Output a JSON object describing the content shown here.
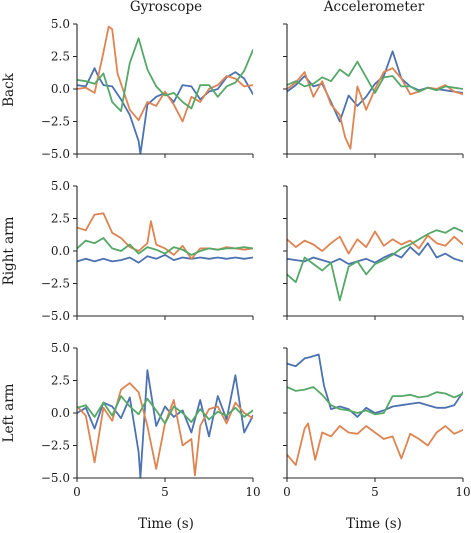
{
  "chart_data": {
    "type": "line",
    "layout": "grid-3x2",
    "column_titles": [
      "Gyroscope",
      "Accelerometer"
    ],
    "row_labels": [
      "Back",
      "Right arm",
      "Left arm"
    ],
    "xlabel": "Time (s)",
    "xlim": [
      0,
      10
    ],
    "ylim": [
      -5,
      5
    ],
    "xticks": [
      "0",
      "5",
      "10"
    ],
    "yticks": [
      "5.0",
      "2.5",
      "0.0",
      "−2.5",
      "−5.0"
    ],
    "xticks_values": [
      0,
      5,
      10
    ],
    "yticks_values": [
      5,
      2.5,
      0,
      -2.5,
      -5
    ],
    "series_colors": [
      "#4c72b0",
      "#dd8452",
      "#55a868"
    ],
    "grid": false,
    "panels": [
      {
        "row": "Back",
        "sensor": "Gyroscope",
        "series": [
          {
            "x": [
              0,
              0.5,
              1,
              1.2,
              1.5,
              2,
              2.5,
              3,
              3.5,
              3.6,
              4,
              4.5,
              5,
              5.5,
              6,
              6.5,
              7,
              7.5,
              8,
              8.5,
              9,
              9.5,
              10
            ],
            "y": [
              0.3,
              0.2,
              1.6,
              1.0,
              0.3,
              0.2,
              -0.8,
              -2.0,
              -4.0,
              -5.0,
              -1.2,
              -0.6,
              -0.3,
              -1.0,
              0.3,
              0.2,
              -0.8,
              -0.2,
              0.0,
              0.9,
              1.3,
              0.8,
              -0.4
            ]
          },
          {
            "x": [
              0,
              0.5,
              1,
              1.5,
              1.8,
              2,
              2.3,
              2.6,
              3,
              3.5,
              4,
              4.5,
              5,
              5.5,
              6,
              6.5,
              7,
              7.5,
              8,
              8.5,
              9,
              9.5,
              10
            ],
            "y": [
              0.0,
              0.1,
              -0.3,
              2.8,
              4.8,
              4.6,
              1.2,
              0.0,
              -1.6,
              -2.4,
              -1.0,
              -1.3,
              -0.2,
              -1.2,
              -2.5,
              -0.6,
              -1.0,
              0.0,
              0.3,
              1.0,
              0.8,
              0.2,
              0.3
            ]
          },
          {
            "x": [
              0,
              0.5,
              1,
              1.5,
              2,
              2.5,
              3,
              3.5,
              4,
              4.5,
              5,
              5.5,
              6,
              6.5,
              7,
              7.5,
              8,
              8.5,
              9,
              9.5,
              10
            ],
            "y": [
              0.7,
              0.6,
              0.4,
              1.2,
              -1.0,
              -1.7,
              2.0,
              3.9,
              1.5,
              0.2,
              -0.5,
              -0.3,
              -1.0,
              -1.5,
              0.3,
              0.3,
              -0.6,
              0.2,
              0.5,
              1.4,
              3.0
            ]
          }
        ]
      },
      {
        "row": "Back",
        "sensor": "Accelerometer",
        "series": [
          {
            "x": [
              0,
              0.5,
              1,
              1.5,
              2,
              2.5,
              3,
              3.5,
              4,
              4.5,
              5,
              5.5,
              6,
              6.5,
              7,
              7.5,
              8,
              8.5,
              9,
              9.5,
              10
            ],
            "y": [
              -0.2,
              0.3,
              1.0,
              0.2,
              0.4,
              -1.0,
              -2.5,
              -0.5,
              -1.3,
              -0.6,
              0.4,
              1.0,
              2.9,
              0.8,
              0.2,
              -0.1,
              0.1,
              0.0,
              -0.1,
              -0.2,
              -0.3
            ]
          },
          {
            "x": [
              0,
              0.5,
              1,
              1.5,
              2,
              2.5,
              3,
              3.3,
              3.6,
              4,
              4.5,
              5,
              5.5,
              6,
              6.5,
              7,
              7.5,
              8,
              8.5,
              9,
              9.5,
              10
            ],
            "y": [
              0.0,
              0.5,
              1.3,
              -0.6,
              0.6,
              -1.2,
              -2.0,
              -3.7,
              -4.6,
              0.2,
              -1.6,
              0.0,
              1.3,
              1.6,
              0.8,
              -0.4,
              -0.2,
              0.1,
              0.0,
              0.3,
              -0.2,
              -0.4
            ]
          },
          {
            "x": [
              0,
              0.5,
              1,
              1.5,
              2,
              2.5,
              3,
              3.5,
              4,
              4.5,
              5,
              5.5,
              6,
              6.5,
              7,
              7.5,
              8,
              8.5,
              9,
              9.5,
              10
            ],
            "y": [
              0.3,
              0.6,
              0.2,
              0.4,
              0.9,
              0.6,
              1.5,
              1.0,
              2.1,
              0.9,
              -0.3,
              0.9,
              1.0,
              0.2,
              0.2,
              -0.2,
              0.1,
              -0.1,
              0.2,
              0.1,
              0.0
            ]
          }
        ]
      },
      {
        "row": "Right arm",
        "sensor": "Gyroscope",
        "series": [
          {
            "x": [
              0,
              0.5,
              1,
              1.5,
              2,
              2.5,
              3,
              3.5,
              4,
              4.5,
              5,
              5.5,
              6,
              6.5,
              7,
              7.5,
              8,
              8.5,
              9,
              9.5,
              10
            ],
            "y": [
              -0.8,
              -0.6,
              -0.8,
              -0.6,
              -0.8,
              -0.7,
              -0.5,
              -0.9,
              -0.4,
              -0.6,
              -0.3,
              -0.7,
              -0.5,
              -0.6,
              -0.5,
              -0.6,
              -0.5,
              -0.6,
              -0.5,
              -0.6,
              -0.5
            ]
          },
          {
            "x": [
              0,
              0.5,
              1,
              1.5,
              2,
              2.5,
              3,
              3.5,
              4,
              4.2,
              4.5,
              5,
              5.5,
              6,
              6.5,
              7,
              7.5,
              8,
              8.5,
              9,
              9.5,
              10
            ],
            "y": [
              1.8,
              1.6,
              2.8,
              2.9,
              1.4,
              1.0,
              0.3,
              0.0,
              0.6,
              2.3,
              0.5,
              0.2,
              -0.3,
              0.4,
              -0.6,
              0.2,
              0.2,
              0.1,
              0.3,
              0.2,
              0.1,
              0.2
            ]
          },
          {
            "x": [
              0,
              0.5,
              1,
              1.5,
              2,
              2.5,
              3,
              3.5,
              4,
              4.5,
              5,
              5.5,
              6,
              6.5,
              7,
              7.5,
              8,
              8.5,
              9,
              9.5,
              10
            ],
            "y": [
              0.2,
              0.8,
              0.6,
              1.0,
              0.2,
              0.0,
              0.5,
              -0.2,
              0.3,
              0.1,
              -0.2,
              0.3,
              0.1,
              -0.3,
              0.0,
              0.2,
              0.1,
              0.2,
              0.2,
              0.3,
              0.2
            ]
          }
        ]
      },
      {
        "row": "Right arm",
        "sensor": "Accelerometer",
        "series": [
          {
            "x": [
              0,
              0.5,
              1,
              1.5,
              2,
              2.5,
              3,
              3.5,
              4,
              4.5,
              5,
              5.5,
              6,
              6.5,
              7,
              7.5,
              8,
              8.5,
              9,
              9.5,
              10
            ],
            "y": [
              -0.6,
              -0.7,
              -0.8,
              -0.5,
              -0.7,
              -0.9,
              -0.6,
              -1.0,
              -0.8,
              -0.6,
              -0.9,
              -0.5,
              -0.2,
              -0.5,
              0.3,
              -0.3,
              0.6,
              -0.5,
              -0.2,
              -0.6,
              -0.8
            ]
          },
          {
            "x": [
              0,
              0.5,
              1,
              1.5,
              2,
              2.5,
              3,
              3.5,
              4,
              4.5,
              5,
              5.5,
              6,
              6.5,
              7,
              7.5,
              8,
              8.5,
              9,
              9.5,
              10
            ],
            "y": [
              0.9,
              0.3,
              0.8,
              0.5,
              0.0,
              0.6,
              1.1,
              -0.2,
              0.9,
              0.3,
              1.5,
              0.4,
              0.9,
              0.5,
              0.8,
              0.2,
              1.2,
              0.6,
              0.4,
              1.1,
              0.5
            ]
          },
          {
            "x": [
              0,
              0.5,
              1,
              1.5,
              2,
              2.5,
              3,
              3.5,
              4,
              4.5,
              5,
              5.5,
              6,
              6.5,
              7,
              7.5,
              8,
              8.5,
              9,
              9.5,
              10
            ],
            "y": [
              -1.8,
              -2.4,
              -0.5,
              -1.0,
              -1.5,
              -0.9,
              -3.8,
              -1.2,
              -0.8,
              -1.8,
              -1.0,
              -0.7,
              -0.3,
              0.2,
              0.5,
              0.9,
              1.3,
              1.6,
              1.4,
              1.8,
              1.5
            ]
          }
        ]
      },
      {
        "row": "Left arm",
        "sensor": "Gyroscope",
        "series": [
          {
            "x": [
              0,
              0.5,
              1,
              1.5,
              2,
              2.5,
              3,
              3.5,
              3.6,
              4,
              4.5,
              5,
              5.5,
              6,
              6.5,
              7,
              7.5,
              8,
              8.5,
              9,
              9.5,
              10
            ],
            "y": [
              0.0,
              0.4,
              -1.2,
              0.8,
              0.5,
              -0.4,
              1.2,
              -3.0,
              -5.0,
              3.3,
              -1.0,
              0.5,
              -0.3,
              0.2,
              -1.5,
              1.0,
              -1.8,
              1.3,
              -0.5,
              2.9,
              -1.5,
              -0.2
            ]
          },
          {
            "x": [
              0,
              0.5,
              1,
              1.5,
              2,
              2.5,
              3,
              3.5,
              4,
              4.5,
              5,
              5.5,
              6,
              6.5,
              6.7,
              7,
              7.5,
              8,
              8.5,
              9,
              9.5,
              10
            ],
            "y": [
              0.5,
              -0.2,
              -3.8,
              0.4,
              -0.6,
              1.8,
              2.3,
              1.6,
              -1.0,
              -4.3,
              -0.8,
              1.0,
              -2.5,
              -2.0,
              -4.8,
              -1.0,
              0.3,
              0.5,
              -0.8,
              0.8,
              0.0,
              -0.4
            ]
          },
          {
            "x": [
              0,
              0.5,
              1,
              1.5,
              2,
              2.5,
              3,
              3.5,
              4,
              4.5,
              5,
              5.5,
              6,
              6.5,
              7,
              7.5,
              8,
              8.5,
              9,
              9.5,
              10
            ],
            "y": [
              0.4,
              0.6,
              -0.3,
              0.8,
              -0.2,
              1.3,
              0.5,
              -0.1,
              1.1,
              0.2,
              -0.8,
              0.5,
              0.0,
              -0.7,
              0.3,
              -0.5,
              0.1,
              -0.2,
              0.4,
              -0.3,
              0.2
            ]
          }
        ]
      },
      {
        "row": "Left arm",
        "sensor": "Accelerometer",
        "series": [
          {
            "x": [
              0,
              0.5,
              1,
              1.3,
              1.8,
              2.1,
              2.5,
              3,
              3.5,
              4,
              4.5,
              5,
              5.5,
              6,
              6.5,
              7,
              7.5,
              8,
              8.5,
              9,
              9.5,
              10
            ],
            "y": [
              3.8,
              3.6,
              4.2,
              4.3,
              4.5,
              2.1,
              0.3,
              0.5,
              0.3,
              -0.3,
              0.4,
              0.0,
              0.2,
              0.5,
              0.6,
              0.7,
              0.8,
              0.6,
              0.4,
              0.4,
              0.6,
              1.6
            ]
          },
          {
            "x": [
              0,
              0.5,
              1,
              1.2,
              1.6,
              2,
              2.5,
              3,
              3.5,
              4,
              4.5,
              5,
              5.5,
              6,
              6.5,
              7,
              7.5,
              8,
              8.5,
              9,
              9.5,
              10
            ],
            "y": [
              -3.2,
              -4.0,
              -1.2,
              -0.8,
              -3.6,
              -1.5,
              -1.8,
              -1.0,
              -1.5,
              -1.6,
              -1.0,
              -1.5,
              -2.0,
              -1.8,
              -3.5,
              -1.6,
              -2.0,
              -2.5,
              -1.5,
              -1.0,
              -1.6,
              -1.3
            ]
          },
          {
            "x": [
              0,
              0.5,
              1,
              1.5,
              2,
              2.5,
              3,
              3.5,
              4,
              4.5,
              5,
              5.5,
              6,
              6.5,
              7,
              7.5,
              8,
              8.5,
              9,
              9.5,
              10
            ],
            "y": [
              2.0,
              1.7,
              1.8,
              2.0,
              1.4,
              0.6,
              0.3,
              0.2,
              0.0,
              0.2,
              -0.1,
              0.0,
              1.3,
              1.3,
              1.4,
              1.2,
              1.3,
              1.6,
              1.5,
              1.2,
              1.5
            ]
          }
        ]
      }
    ]
  }
}
